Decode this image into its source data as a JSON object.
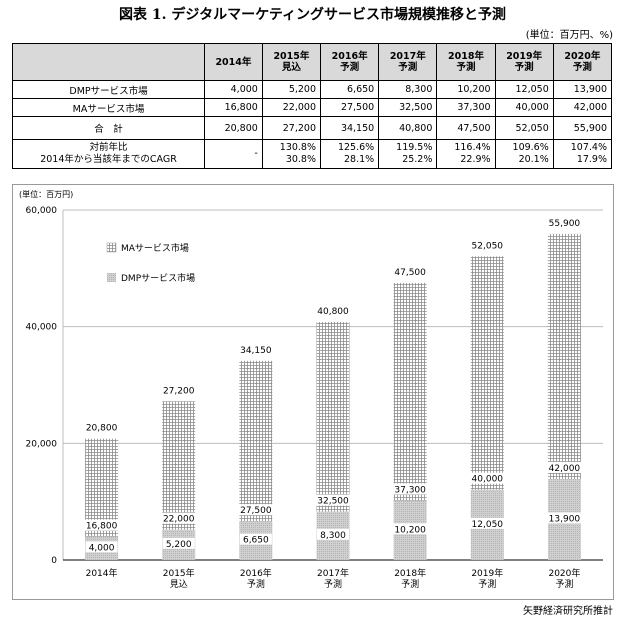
{
  "title": "図表 1. デジタルマーケティングサービス市場規模推移と予測",
  "unit_note": "(単位：百万円、%)",
  "source_note": "矢野経済研究所推計",
  "table": {
    "headers": [
      {
        "l1": "2014年",
        "l2": ""
      },
      {
        "l1": "2015年",
        "l2": "見込"
      },
      {
        "l1": "2016年",
        "l2": "予測"
      },
      {
        "l1": "2017年",
        "l2": "予測"
      },
      {
        "l1": "2018年",
        "l2": "予測"
      },
      {
        "l1": "2019年",
        "l2": "予測"
      },
      {
        "l1": "2020年",
        "l2": "予測"
      }
    ],
    "rows": [
      {
        "label": "DMPサービス市場",
        "values": [
          "4,000",
          "5,200",
          "6,650",
          "8,300",
          "10,200",
          "12,050",
          "13,900"
        ]
      },
      {
        "label": "MAサービス市場",
        "values": [
          "16,800",
          "22,000",
          "27,500",
          "32,500",
          "37,300",
          "40,000",
          "42,000"
        ]
      },
      {
        "label": "合　計",
        "values": [
          "20,800",
          "27,200",
          "34,150",
          "40,800",
          "47,500",
          "52,050",
          "55,900"
        ]
      }
    ],
    "growth": {
      "label1": "対前年比",
      "label2": "2014年から当該年までのCAGR",
      "yoy": [
        "-",
        "130.8%",
        "125.6%",
        "119.5%",
        "116.4%",
        "109.6%",
        "107.4%"
      ],
      "cagr": [
        "",
        "30.8%",
        "28.1%",
        "25.2%",
        "22.9%",
        "20.1%",
        "17.9%"
      ]
    }
  },
  "chart_data": {
    "type": "bar",
    "stacked": true,
    "unit_label": "(単位：百万円)",
    "categories": [
      [
        "2014年"
      ],
      [
        "2015年",
        "見込"
      ],
      [
        "2016年",
        "予測"
      ],
      [
        "2017年",
        "予測"
      ],
      [
        "2018年",
        "予測"
      ],
      [
        "2019年",
        "予測"
      ],
      [
        "2020年",
        "予測"
      ]
    ],
    "series": [
      {
        "name": "DMPサービス市場",
        "values": [
          4000,
          5200,
          6650,
          8300,
          10200,
          12050,
          13900
        ],
        "color": "#c8c8c8",
        "pattern": "dots"
      },
      {
        "name": "MAサービス市場",
        "values": [
          16800,
          22000,
          27500,
          32500,
          37300,
          40000,
          42000
        ],
        "color": "#ffffff",
        "pattern": "grid"
      }
    ],
    "totals": [
      20800,
      27200,
      34150,
      40800,
      47500,
      52050,
      55900
    ],
    "ylim": [
      0,
      60000
    ],
    "yticks": [
      "0",
      "20,000",
      "40,000",
      "60,000"
    ],
    "ytick_values": [
      0,
      20000,
      40000,
      60000
    ],
    "grid": true,
    "legend_position": "top-left"
  }
}
